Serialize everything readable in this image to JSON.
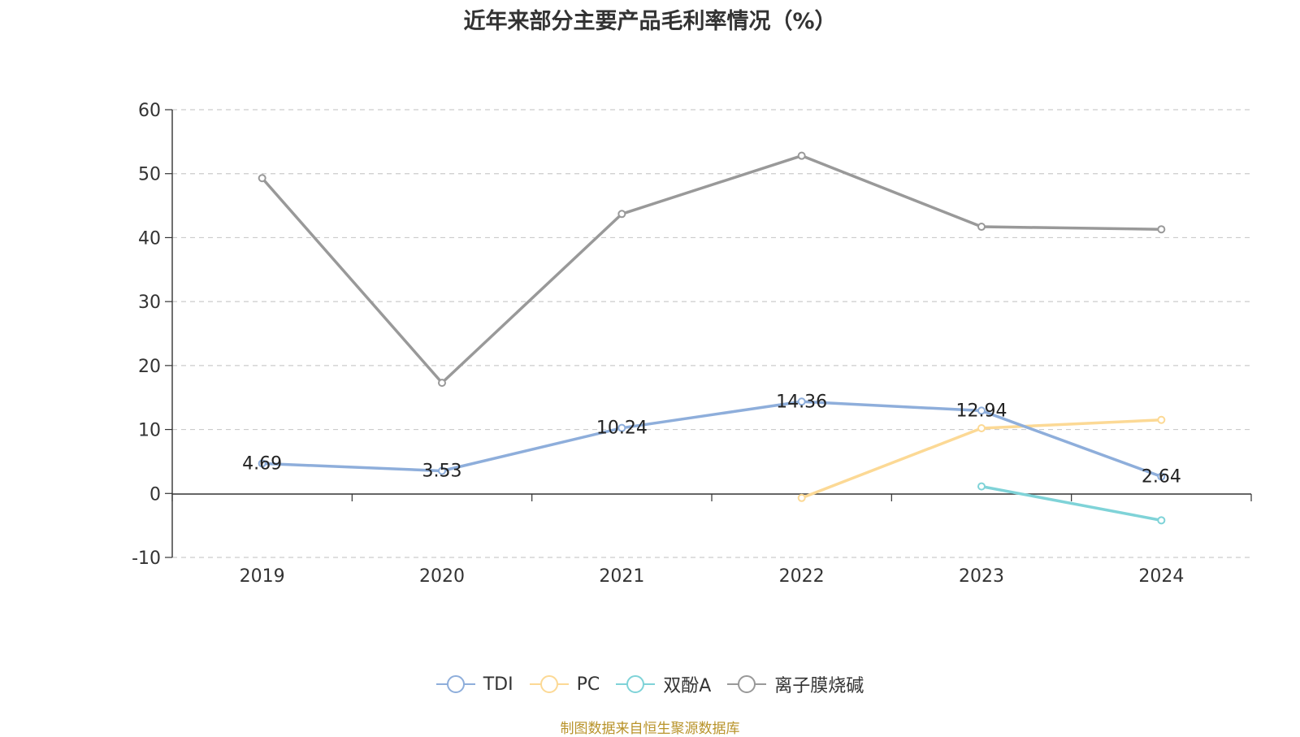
{
  "chart_data": {
    "type": "line",
    "title": "近年来部分主要产品毛利率情况（%）",
    "categories": [
      "2019",
      "2020",
      "2021",
      "2022",
      "2023",
      "2024"
    ],
    "ylim": [
      -10,
      60
    ],
    "yticks": [
      "60",
      "50",
      "40",
      "30",
      "20",
      "10",
      "0",
      "-10"
    ],
    "grid": true,
    "legend_position": "bottom",
    "series": [
      {
        "name": "TDI",
        "color": "#8eaedb",
        "values": [
          4.69,
          3.53,
          10.24,
          14.36,
          12.94,
          2.64
        ],
        "labels": [
          "4.69",
          "3.53",
          "10.24",
          "14.36",
          "12.94",
          "2.64"
        ]
      },
      {
        "name": "PC",
        "color": "#fcd995",
        "values": [
          null,
          null,
          null,
          -0.7,
          10.2,
          11.5
        ]
      },
      {
        "name": "双酚A",
        "color": "#7fd3d8",
        "values": [
          null,
          null,
          null,
          null,
          1.1,
          -4.2
        ]
      },
      {
        "name": "离子膜烧碱",
        "color": "#999999",
        "values": [
          49.3,
          17.3,
          43.7,
          52.8,
          41.7,
          41.3
        ]
      }
    ]
  },
  "source_note": "制图数据来自恒生聚源数据库"
}
